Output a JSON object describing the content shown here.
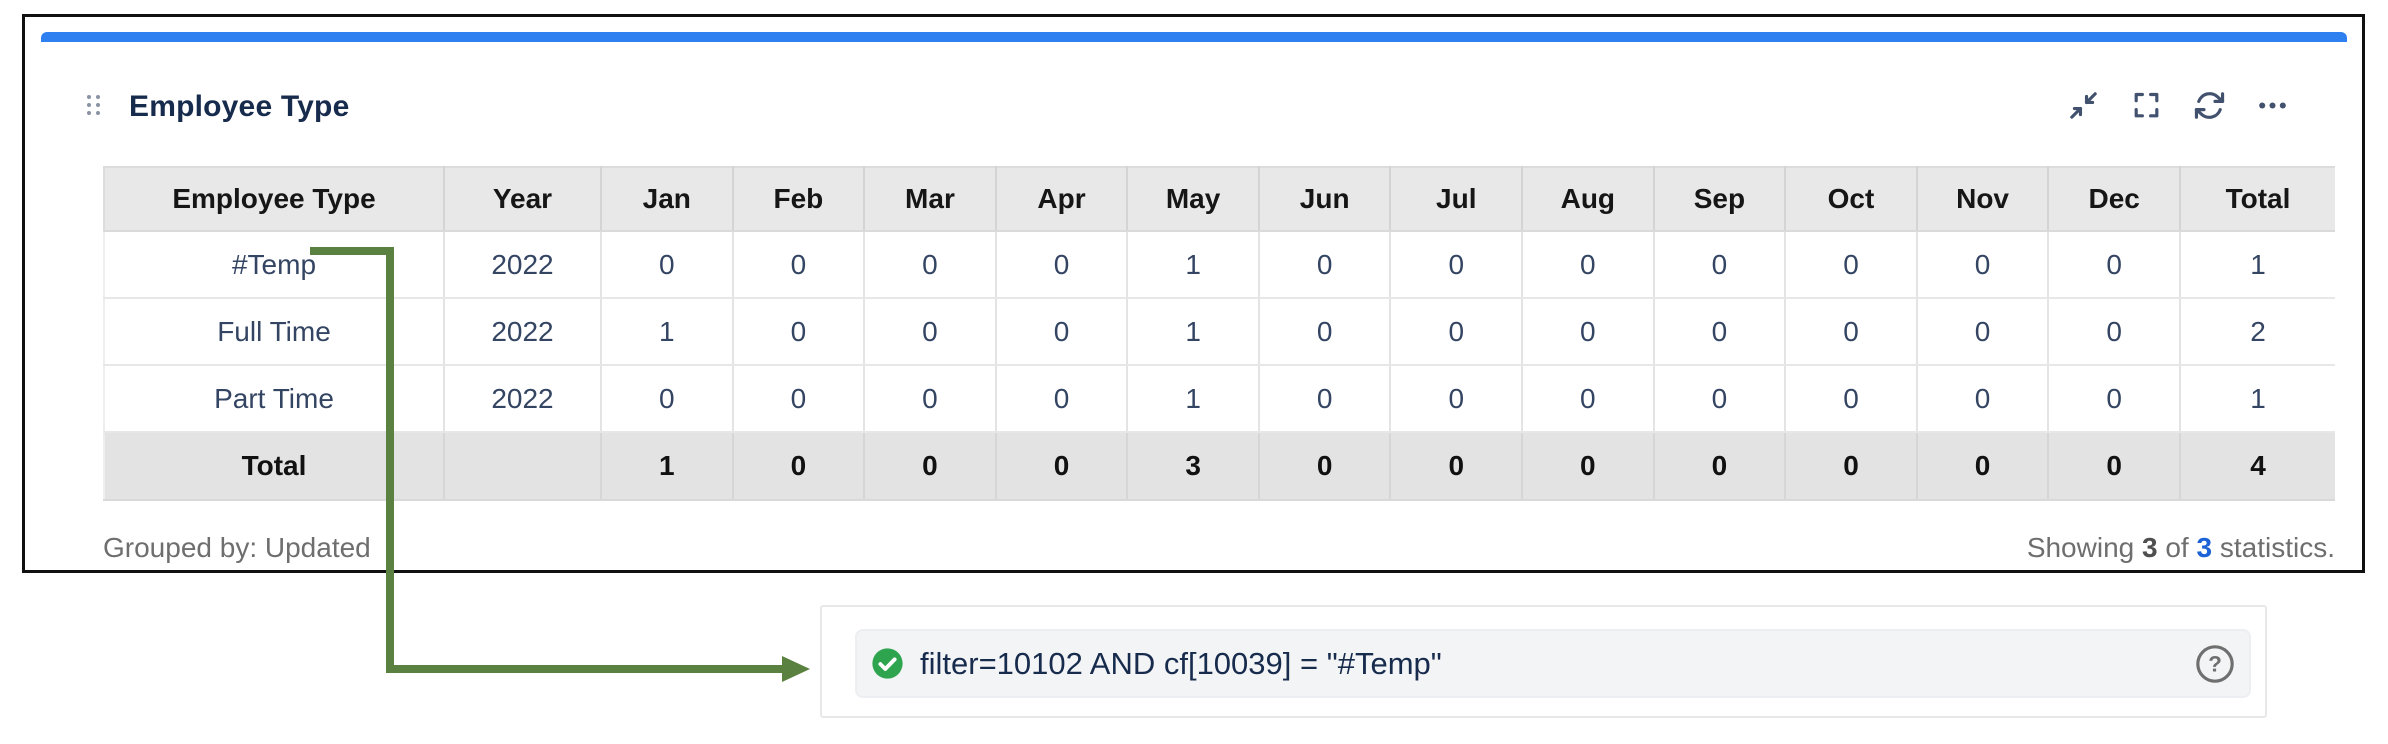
{
  "gadget": {
    "title": "Employee Type",
    "toolbar": {
      "minimize_icon": "minimize-icon",
      "maximize_icon": "maximize-icon",
      "refresh_icon": "refresh-icon",
      "more_icon": "more-icon"
    },
    "table": {
      "columns": [
        "Employee Type",
        "Year",
        "Jan",
        "Feb",
        "Mar",
        "Apr",
        "May",
        "Jun",
        "Jul",
        "Aug",
        "Sep",
        "Oct",
        "Nov",
        "Dec",
        "Total"
      ],
      "rows": [
        {
          "type": "#Temp",
          "year": "2022",
          "months": [
            "0",
            "0",
            "0",
            "0",
            "1",
            "0",
            "0",
            "0",
            "0",
            "0",
            "0",
            "0"
          ],
          "total": "1"
        },
        {
          "type": "Full Time",
          "year": "2022",
          "months": [
            "1",
            "0",
            "0",
            "0",
            "1",
            "0",
            "0",
            "0",
            "0",
            "0",
            "0",
            "0"
          ],
          "total": "2"
        },
        {
          "type": "Part Time",
          "year": "2022",
          "months": [
            "0",
            "0",
            "0",
            "0",
            "1",
            "0",
            "0",
            "0",
            "0",
            "0",
            "0",
            "0"
          ],
          "total": "1"
        }
      ],
      "totals": {
        "label": "Total",
        "year": "",
        "months": [
          "1",
          "0",
          "0",
          "0",
          "3",
          "0",
          "0",
          "0",
          "0",
          "0",
          "0",
          "0"
        ],
        "total": "4"
      }
    },
    "footer": {
      "grouped_by": "Grouped by: Updated",
      "showing_prefix": "Showing",
      "shown_count": "3",
      "of_text": "of",
      "total_count": "3",
      "suffix": "statistics."
    }
  },
  "annotation": {
    "filter_query": "filter=10102 AND cf[10039] = \"#Temp\"",
    "check_icon": "check-circle-icon",
    "help_icon": "question-circle-icon",
    "arrow": "arrow-from-temp-link-to-filter"
  },
  "colors": {
    "blue_bar": "#2e7ff0",
    "link_blue": "#1a62d6",
    "title_navy": "#172b4d",
    "icon_slate": "#42526e",
    "arrow_green": "#5a8140",
    "check_green": "#2ea44f",
    "header_gray": "#e8e8e8",
    "total_row_gray": "#e3e3e3"
  }
}
